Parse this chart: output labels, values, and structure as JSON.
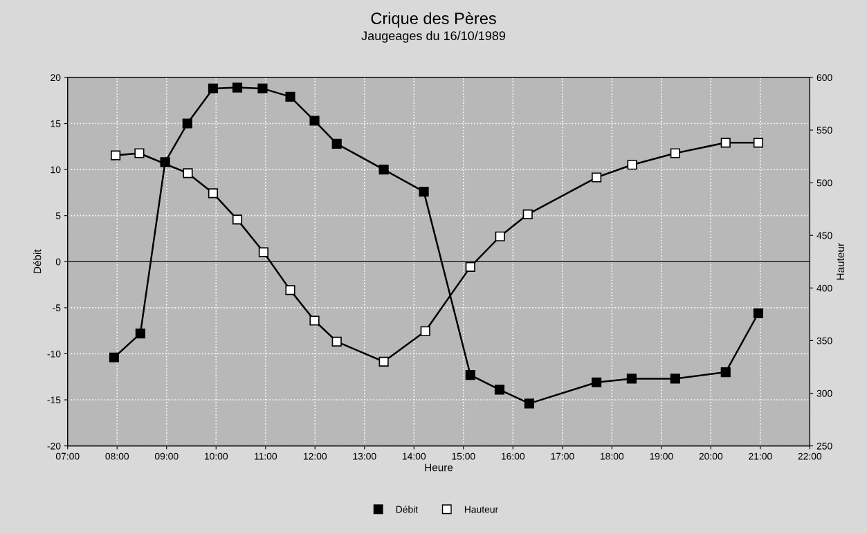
{
  "chart_data": {
    "type": "line",
    "title": "Crique des Pères",
    "subtitle": "Jaugeages du 16/10/1989",
    "xlabel": "Heure",
    "ylabel": "Débit",
    "y2label": "Hauteur",
    "xlim": [
      7,
      22
    ],
    "xticks": [
      {
        "value": 7,
        "label": "07:00"
      },
      {
        "value": 8,
        "label": "08:00"
      },
      {
        "value": 9,
        "label": "09:00"
      },
      {
        "value": 10,
        "label": "10:00"
      },
      {
        "value": 11,
        "label": "11:00"
      },
      {
        "value": 12,
        "label": "12:00"
      },
      {
        "value": 13,
        "label": "13:00"
      },
      {
        "value": 14,
        "label": "14:00"
      },
      {
        "value": 15,
        "label": "15:00"
      },
      {
        "value": 16,
        "label": "16:00"
      },
      {
        "value": 17,
        "label": "17:00"
      },
      {
        "value": 18,
        "label": "18:00"
      },
      {
        "value": 19,
        "label": "19:00"
      },
      {
        "value": 20,
        "label": "20:00"
      },
      {
        "value": 21,
        "label": "21:00"
      },
      {
        "value": 22,
        "label": "22:00"
      }
    ],
    "ylim": [
      -20,
      20
    ],
    "yticks": [
      -20,
      -15,
      -10,
      -5,
      0,
      5,
      10,
      15,
      20
    ],
    "y2lim": [
      250,
      600
    ],
    "y2ticks": [
      250,
      300,
      350,
      400,
      450,
      500,
      550,
      600
    ],
    "grid": true,
    "legend": "bottom",
    "marker": "square",
    "line_style": "solid",
    "ref_lines": [
      {
        "axis": "y",
        "value": 0,
        "color": "#000000"
      }
    ],
    "series": [
      {
        "name": "Débit",
        "color": "#000000",
        "x": [
          7.94,
          8.47,
          8.97,
          9.42,
          9.94,
          10.43,
          10.94,
          11.5,
          11.99,
          12.44,
          13.39,
          14.2,
          15.14,
          15.73,
          16.33,
          17.69,
          18.4,
          19.28,
          20.3,
          20.96
        ],
        "values": [
          -10.4,
          -7.8,
          10.8,
          15.0,
          18.8,
          18.9,
          18.8,
          17.9,
          15.3,
          12.8,
          10.0,
          7.6,
          -12.3,
          -13.9,
          -15.4,
          -13.1,
          -12.7,
          -12.7,
          -12.0,
          -5.6
        ]
      },
      {
        "name": "Hauteur",
        "color": "#ffffff",
        "axis": "y2",
        "x": [
          7.97,
          8.45,
          9.43,
          9.94,
          10.43,
          10.96,
          11.5,
          11.99,
          12.44,
          13.39,
          14.23,
          15.14,
          15.74,
          16.3,
          17.69,
          18.41,
          19.28,
          20.3,
          20.96
        ],
        "values": [
          526,
          528,
          509,
          490,
          465,
          434,
          398,
          369,
          349,
          330,
          359,
          420,
          449,
          470,
          505,
          517,
          528,
          538,
          538
        ]
      }
    ]
  }
}
